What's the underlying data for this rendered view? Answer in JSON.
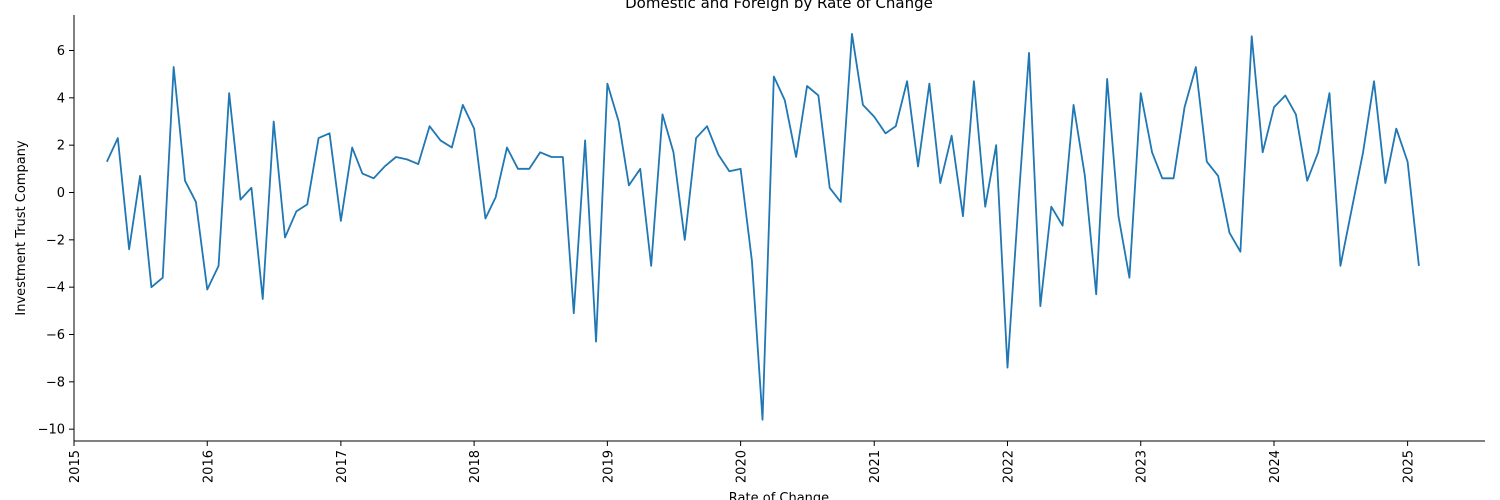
{
  "chart_data": {
    "type": "line",
    "title": "Domestic and Foreign by Rate of Change",
    "xlabel": "Rate of Change",
    "ylabel": "Investment Trust Company",
    "xlim": [
      "2015-01-01",
      "2025-08-01"
    ],
    "ylim": [
      -10.5,
      7.5
    ],
    "x_ticks": [
      "2015",
      "2016",
      "2017",
      "2018",
      "2019",
      "2020",
      "2021",
      "2022",
      "2023",
      "2024",
      "2025"
    ],
    "y_ticks": [
      -10,
      -8,
      -6,
      -4,
      -2,
      0,
      2,
      4,
      6
    ],
    "grid": false,
    "legend": "none",
    "series": [
      {
        "color": "#1f77b4",
        "x": [
          "2015-04",
          "2015-05",
          "2015-06",
          "2015-07",
          "2015-08",
          "2015-09",
          "2015-10",
          "2015-11",
          "2015-12",
          "2016-01",
          "2016-02",
          "2016-03",
          "2016-04",
          "2016-05",
          "2016-06",
          "2016-07",
          "2016-08",
          "2016-09",
          "2016-10",
          "2016-11",
          "2016-12",
          "2017-01",
          "2017-02",
          "2017-03",
          "2017-04",
          "2017-05",
          "2017-06",
          "2017-07",
          "2017-08",
          "2017-09",
          "2017-10",
          "2017-11",
          "2017-12",
          "2018-01",
          "2018-02",
          "2018-03",
          "2018-04",
          "2018-05",
          "2018-06",
          "2018-07",
          "2018-08",
          "2018-09",
          "2018-10",
          "2018-11",
          "2018-12",
          "2019-01",
          "2019-02",
          "2019-03",
          "2019-04",
          "2019-05",
          "2019-06",
          "2019-07",
          "2019-08",
          "2019-09",
          "2019-10",
          "2019-11",
          "2019-12",
          "2020-01",
          "2020-02",
          "2020-03",
          "2020-04",
          "2020-05",
          "2020-06",
          "2020-07",
          "2020-08",
          "2020-09",
          "2020-10",
          "2020-11",
          "2020-12",
          "2021-01",
          "2021-02",
          "2021-03",
          "2021-04",
          "2021-05",
          "2021-06",
          "2021-07",
          "2021-08",
          "2021-09",
          "2021-10",
          "2021-11",
          "2021-12",
          "2022-01",
          "2022-02",
          "2022-03",
          "2022-04",
          "2022-05",
          "2022-06",
          "2022-07",
          "2022-08",
          "2022-09",
          "2022-10",
          "2022-11",
          "2022-12",
          "2023-01",
          "2023-02",
          "2023-03",
          "2023-04",
          "2023-05",
          "2023-06",
          "2023-07",
          "2023-08",
          "2023-09",
          "2023-10",
          "2023-11",
          "2023-12",
          "2024-01",
          "2024-02",
          "2024-03",
          "2024-04",
          "2024-05",
          "2024-06",
          "2024-07",
          "2024-08",
          "2024-09",
          "2024-10",
          "2024-11",
          "2024-12",
          "2025-01",
          "2025-02"
        ],
        "values": [
          1.3,
          2.3,
          -2.4,
          0.7,
          -4.0,
          -3.6,
          5.3,
          0.5,
          -0.4,
          -4.1,
          -3.1,
          4.2,
          -0.3,
          0.2,
          -4.5,
          3.0,
          -1.9,
          -0.8,
          -0.5,
          2.3,
          2.5,
          -1.2,
          1.9,
          0.8,
          0.6,
          1.1,
          1.5,
          1.4,
          1.2,
          2.8,
          2.2,
          1.9,
          3.7,
          2.7,
          -1.1,
          -0.2,
          1.9,
          1.0,
          1.0,
          1.7,
          1.5,
          1.5,
          -5.1,
          2.2,
          -6.3,
          4.6,
          3.0,
          0.3,
          1.0,
          -3.1,
          3.3,
          1.7,
          -2.0,
          2.3,
          2.8,
          1.6,
          0.9,
          1.0,
          -2.9,
          -9.6,
          4.9,
          3.9,
          1.5,
          4.5,
          4.1,
          0.2,
          -0.4,
          6.7,
          3.7,
          3.2,
          2.5,
          2.8,
          4.7,
          1.1,
          4.6,
          0.4,
          2.4,
          -1.0,
          4.7,
          -0.6,
          2.0,
          -7.4,
          -0.2,
          5.9,
          -4.8,
          -0.6,
          -1.4,
          3.7,
          0.7,
          -4.3,
          4.8,
          -1.0,
          -3.6,
          4.2,
          1.7,
          0.6,
          0.6,
          3.6,
          5.3,
          1.3,
          0.7,
          -1.7,
          -2.5,
          6.6,
          1.7,
          3.6,
          4.1,
          3.3,
          0.5,
          1.7,
          4.2,
          -3.1,
          -0.7,
          1.7,
          4.7,
          0.4,
          2.7,
          1.3,
          -3.1
        ]
      }
    ]
  }
}
